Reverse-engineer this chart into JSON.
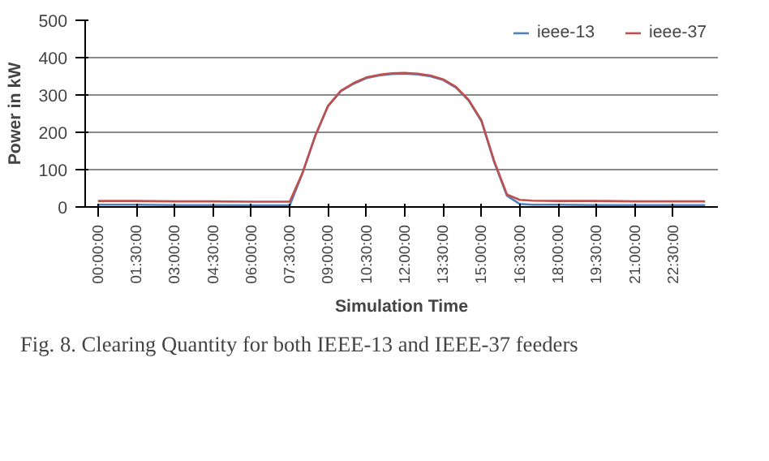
{
  "chart_data": {
    "type": "line",
    "xlabel": "Simulation Time",
    "ylabel": "Power in kW",
    "x": [
      0,
      1.5,
      3,
      4.5,
      6,
      7.5,
      8,
      8.5,
      9,
      9.5,
      10,
      10.5,
      11,
      11.5,
      12,
      12.5,
      13,
      13.5,
      14,
      14.5,
      15,
      15.5,
      16,
      16.5,
      17,
      18,
      19.5,
      21,
      22.5,
      23.75
    ],
    "series": [
      {
        "name": "ieee-13",
        "color": "#4f81bd",
        "values": [
          6,
          6,
          5,
          5,
          4,
          4,
          90,
          190,
          270,
          310,
          330,
          345,
          352,
          356,
          357,
          355,
          350,
          340,
          320,
          285,
          230,
          120,
          30,
          8,
          6,
          6,
          5,
          5,
          5,
          5
        ]
      },
      {
        "name": "ieee-37",
        "color": "#c0504d",
        "values": [
          16,
          16,
          15,
          15,
          14,
          14,
          91,
          191,
          271,
          311,
          332,
          347,
          354,
          358,
          359,
          357,
          352,
          342,
          322,
          287,
          232,
          123,
          33,
          19,
          17,
          16,
          16,
          15,
          15,
          15
        ]
      }
    ],
    "xlim": [
      -0.5,
      24.25
    ],
    "ylim": [
      0,
      500
    ],
    "xticks": [
      {
        "value": 0,
        "label": "00:00:00"
      },
      {
        "value": 1.5,
        "label": "01:30:00"
      },
      {
        "value": 3,
        "label": "03:00:00"
      },
      {
        "value": 4.5,
        "label": "04:30:00"
      },
      {
        "value": 6,
        "label": "06:00:00"
      },
      {
        "value": 7.5,
        "label": "07:30:00"
      },
      {
        "value": 9,
        "label": "09:00:00"
      },
      {
        "value": 10.5,
        "label": "10:30:00"
      },
      {
        "value": 12,
        "label": "12:00:00"
      },
      {
        "value": 13.5,
        "label": "13:30:00"
      },
      {
        "value": 15,
        "label": "15:00:00"
      },
      {
        "value": 16.5,
        "label": "16:30:00"
      },
      {
        "value": 18,
        "label": "18:00:00"
      },
      {
        "value": 19.5,
        "label": "19:30:00"
      },
      {
        "value": 21,
        "label": "21:00:00"
      },
      {
        "value": 22.5,
        "label": "22:30:00"
      }
    ],
    "yticks": [
      0,
      100,
      200,
      300,
      400,
      500
    ],
    "grid": "y",
    "legend": "top right",
    "marker": "none",
    "line_style": "solid",
    "annotations": [
      "Fig. 8. Clearing Quantity for both IEEE-13 and IEEE-37 feeders"
    ]
  }
}
